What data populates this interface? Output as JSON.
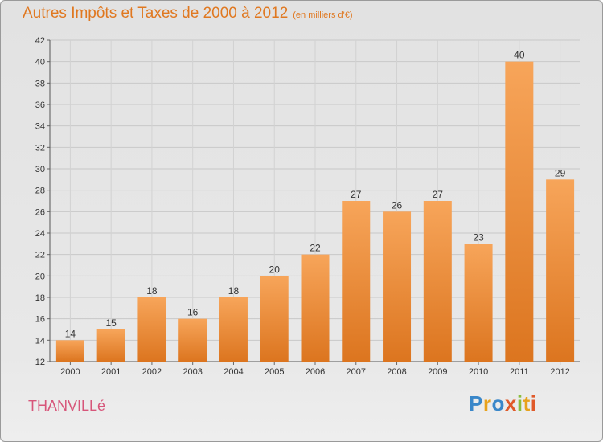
{
  "header": {
    "title": "Autres Impôts et Taxes de 2000 à 2012",
    "subtitle": "(en milliers d'€)"
  },
  "footer": {
    "commune": "THANVILLé",
    "logo_text": "Proxiti"
  },
  "colors": {
    "bar_top": "#f7a55a",
    "bar_bottom": "#dc751f",
    "title": "#e07820",
    "commune": "#d7567a"
  },
  "chart_data": {
    "type": "bar",
    "title": "Autres Impôts et Taxes de 2000 à 2012",
    "subtitle": "(en milliers d'€)",
    "categories": [
      "2000",
      "2001",
      "2002",
      "2003",
      "2004",
      "2005",
      "2006",
      "2007",
      "2008",
      "2009",
      "2010",
      "2011",
      "2012"
    ],
    "values": [
      14,
      15,
      18,
      16,
      18,
      20,
      22,
      27,
      26,
      27,
      23,
      40,
      29
    ],
    "ylim": [
      12,
      42
    ],
    "yticks": [
      12,
      14,
      16,
      18,
      20,
      22,
      24,
      26,
      28,
      30,
      32,
      34,
      36,
      38,
      40,
      42
    ],
    "grid": true,
    "data_labels": true
  }
}
